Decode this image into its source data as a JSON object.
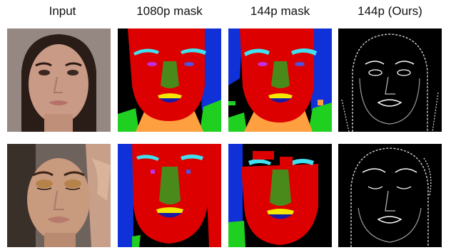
{
  "headers": [
    "Input",
    "1080p mask",
    "144p mask",
    "144p (Ours)"
  ],
  "rows": [
    {
      "row": 1,
      "input": "face-photo-neutral",
      "mask1080": "segmentation-mask",
      "mask144": "segmentation-mask-lowres",
      "ours144": "edge-map"
    },
    {
      "row": 2,
      "input": "face-photo-glitter-eyeshadow",
      "mask1080": "segmentation-mask",
      "mask144": "segmentation-mask-lowres",
      "ours144": "edge-map"
    }
  ],
  "mask_colors": {
    "face": "#dd0000",
    "hair": "#1030d8",
    "background": "#000000",
    "nose": "#4a8a1a",
    "brows": "#40e0f0",
    "eyes": "#c030e0",
    "upper_lip": "#f5e800",
    "lower_lip": "#1a1aa8",
    "neck": "#ffa040",
    "clothing": "#20d020"
  }
}
